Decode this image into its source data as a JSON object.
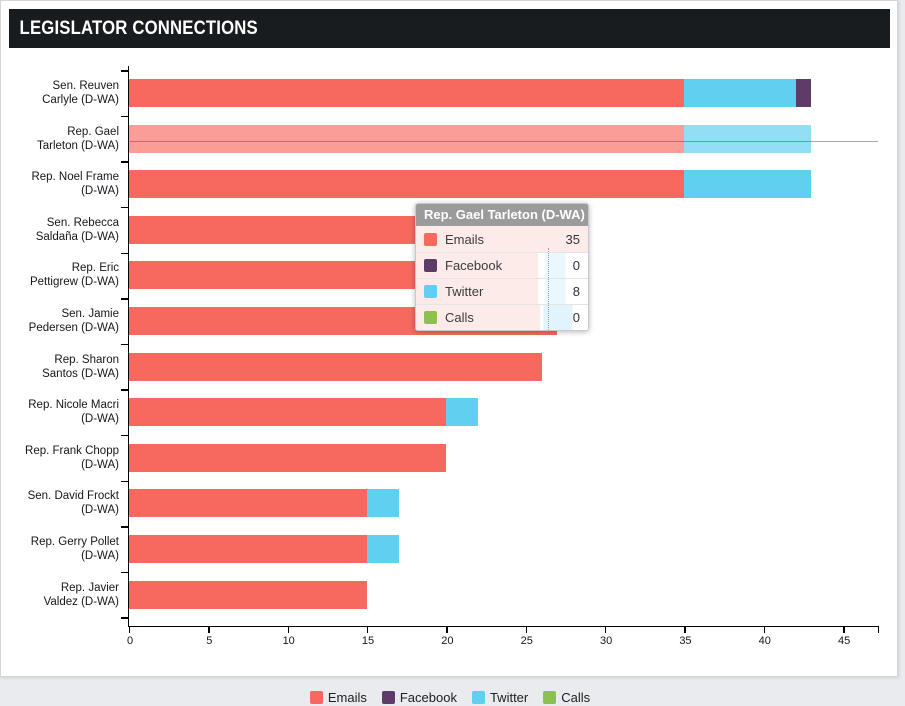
{
  "header": {
    "title": "LEGISLATOR CONNECTIONS"
  },
  "chart_data": {
    "type": "bar",
    "orientation": "horizontal",
    "stacked": true,
    "title": "Legislator Connections",
    "xlabel": "",
    "ylabel": "",
    "xlim": [
      0,
      47.2
    ],
    "x_ticks": [
      0,
      5,
      10,
      15,
      20,
      25,
      30,
      35,
      40,
      45
    ],
    "grid": false,
    "legend_position": "bottom",
    "highlighted_category": "Rep. Gael Tarleton (D-WA)",
    "categories": [
      {
        "name": "Sen. Reuven Carlyle (D-WA)",
        "label_lines": [
          "Sen. Reuven",
          "Carlyle (D-WA)"
        ]
      },
      {
        "name": "Rep. Gael Tarleton (D-WA)",
        "label_lines": [
          "Rep. Gael",
          "Tarleton (D-WA)"
        ],
        "highlighted": true
      },
      {
        "name": "Rep. Noel Frame (D-WA)",
        "label_lines": [
          "Rep. Noel Frame",
          "(D-WA)"
        ]
      },
      {
        "name": "Sen. Rebecca Saldaña (D-WA)",
        "label_lines": [
          "Sen. Rebecca",
          "Saldaña (D-WA)"
        ]
      },
      {
        "name": "Rep. Eric Pettigrew (D-WA)",
        "label_lines": [
          "Rep. Eric",
          "Pettigrew (D-WA)"
        ]
      },
      {
        "name": "Sen. Jamie Pedersen (D-WA)",
        "label_lines": [
          "Sen. Jamie",
          "Pedersen (D-WA)"
        ]
      },
      {
        "name": "Rep. Sharon Santos (D-WA)",
        "label_lines": [
          "Rep. Sharon",
          "Santos (D-WA)"
        ]
      },
      {
        "name": "Rep. Nicole Macri (D-WA)",
        "label_lines": [
          "Rep. Nicole Macri",
          "(D-WA)"
        ]
      },
      {
        "name": "Rep. Frank Chopp (D-WA)",
        "label_lines": [
          "Rep. Frank Chopp",
          "(D-WA)"
        ]
      },
      {
        "name": "Sen. David Frockt (D-WA)",
        "label_lines": [
          "Sen. David Frockt",
          "(D-WA)"
        ]
      },
      {
        "name": "Rep. Gerry Pollet (D-WA)",
        "label_lines": [
          "Rep. Gerry Pollet",
          "(D-WA)"
        ]
      },
      {
        "name": "Rep. Javier Valdez (D-WA)",
        "label_lines": [
          "Rep. Javier",
          "Valdez (D-WA)"
        ]
      }
    ],
    "series": [
      {
        "name": "Emails",
        "color": "#f7695e",
        "faded_color": "#f99d96",
        "values": [
          35,
          35,
          35,
          26,
          26,
          27,
          26,
          20,
          20,
          15,
          15,
          15
        ]
      },
      {
        "name": "Facebook",
        "color": "#5d3c68",
        "faded_color": "#9b86a3",
        "values": [
          1,
          0,
          0,
          0,
          0,
          0,
          0,
          0,
          0,
          0,
          0,
          0
        ]
      },
      {
        "name": "Twitter",
        "color": "#5fd0ef",
        "faded_color": "#90dff4",
        "values": [
          7,
          8,
          8,
          2,
          2,
          0,
          0,
          2,
          0,
          2,
          2,
          0
        ]
      },
      {
        "name": "Calls",
        "color": "#8cc152",
        "faded_color": "#c0dd9f",
        "values": [
          0,
          0,
          0,
          0,
          0,
          0,
          0,
          0,
          0,
          0,
          0,
          0
        ]
      }
    ],
    "stack_order_visual": [
      "Emails",
      "Twitter",
      "Facebook",
      "Calls"
    ]
  },
  "tooltip": {
    "title": "Rep. Gael Tarleton (D-WA)",
    "rows": [
      {
        "label": "Emails",
        "value": "35",
        "color": "#f7695e"
      },
      {
        "label": "Facebook",
        "value": "0",
        "color": "#5d3c68"
      },
      {
        "label": "Twitter",
        "value": "8",
        "color": "#5fd0ef"
      },
      {
        "label": "Calls",
        "value": "0",
        "color": "#8cc152"
      }
    ]
  },
  "legend": {
    "items": [
      {
        "label": "Emails",
        "color": "#f7695e"
      },
      {
        "label": "Facebook",
        "color": "#5d3c68"
      },
      {
        "label": "Twitter",
        "color": "#5fd0ef"
      },
      {
        "label": "Calls",
        "color": "#8cc152"
      }
    ]
  }
}
